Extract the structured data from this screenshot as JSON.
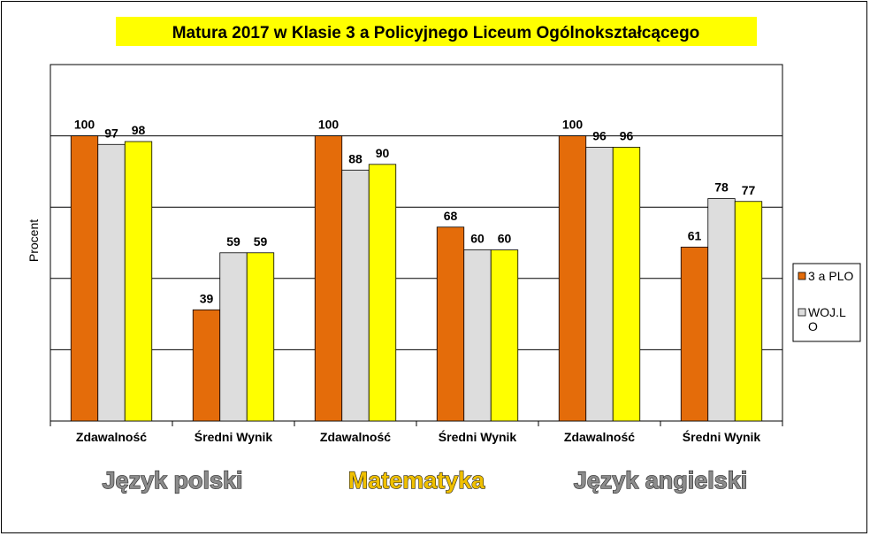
{
  "chart_data": {
    "type": "bar",
    "title": "Matura 2017 w Klasie 3 a Policyjnego Liceum Ogólnokształcącego",
    "ylabel": "Procent",
    "xlabel": "",
    "ylim": [
      0,
      125
    ],
    "grid": true,
    "legend_position": "right",
    "categories": [
      "Zdawalność",
      "Średni Wynik",
      "Zdawalność",
      "Średni Wynik",
      "Zdawalność",
      "Średni Wynik"
    ],
    "series": [
      {
        "name": "3 a PLO",
        "color": "#e46c0a",
        "values": [
          100,
          39,
          100,
          68,
          100,
          61
        ]
      },
      {
        "name": "WOJ.LO",
        "legend_lines": [
          "WOJ.L",
          "O"
        ],
        "color": "#dddddd",
        "values": [
          97,
          59,
          88,
          60,
          96,
          78
        ]
      },
      {
        "name": "",
        "color": "#ffff00",
        "values": [
          98,
          59,
          90,
          60,
          96,
          77
        ]
      }
    ],
    "groups": [
      {
        "label": "Język polski",
        "color": "#8c8c8c"
      },
      {
        "label": "Matematyka",
        "color": "#f0c000"
      },
      {
        "label": "Język angielski",
        "color": "#8c8c8c"
      }
    ]
  }
}
